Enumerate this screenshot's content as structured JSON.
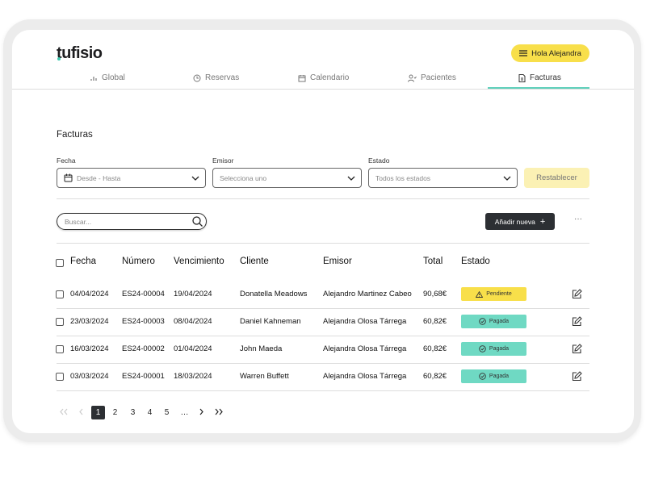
{
  "header": {
    "logo": "tufisio",
    "greeting": "Hola Alejandra"
  },
  "nav": {
    "items": [
      "Global",
      "Reservas",
      "Calendario",
      "Pacientes",
      "Facturas"
    ]
  },
  "page_title": "Facturas",
  "filters": [
    {
      "label": "Fecha",
      "placeholder": "Desde - Hasta"
    },
    {
      "label": "Emisor",
      "placeholder": "Selecciona uno"
    },
    {
      "label": "Estado",
      "placeholder": "Todos los estados"
    }
  ],
  "reset_button": "Restablecer",
  "search_placeholder": "Buscar...",
  "add_button": "Añadir nueva",
  "table": {
    "columns": [
      "Fecha",
      "Número",
      "Vencimiento",
      "Cliente",
      "Emisor",
      "Total",
      "Estado"
    ],
    "rows": [
      {
        "cells": [
          "04/04/2024",
          "ES24-00004",
          "19/04/2024",
          "Donatella Meadows",
          "Alejandro Martinez Cabeo",
          "90,68€"
        ],
        "status": "Pendiente",
        "status_color": "#f8df4a"
      },
      {
        "cells": [
          "23/03/2024",
          "ES24-00003",
          "08/04/2024",
          "Daniel Kahneman",
          "Alejandra Olosa Tárrega",
          "60,82€"
        ],
        "status": "Pagada",
        "status_color": "#6fd9c3"
      },
      {
        "cells": [
          "16/03/2024",
          "ES24-00002",
          "01/04/2024",
          "John Maeda",
          "Alejandra Olosa Tárrega",
          "60,82€"
        ],
        "status": "Pagada",
        "status_color": "#6fd9c3"
      },
      {
        "cells": [
          "03/03/2024",
          "ES24-00001",
          "18/03/2024",
          "Warren Buffett",
          "Alejandra Olosa Tárrega",
          "60,82€"
        ],
        "status": "Pagada",
        "status_color": "#6fd9c3"
      }
    ]
  },
  "pagination": {
    "pages": [
      "1",
      "2",
      "3",
      "4",
      "5",
      "…"
    ]
  }
}
